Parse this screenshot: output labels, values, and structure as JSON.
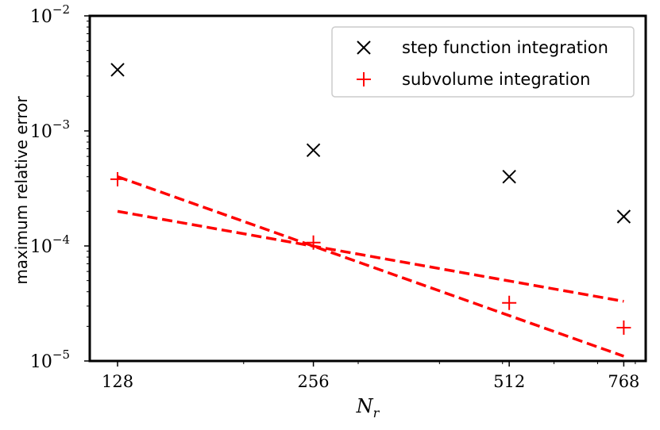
{
  "chart_data": {
    "type": "scatter",
    "xscale": "log",
    "yscale": "log",
    "x_ticks": [
      128,
      256,
      512,
      768
    ],
    "x_tick_labels": [
      "128",
      "256",
      "512",
      "768"
    ],
    "y_ticks": [
      1e-05,
      0.0001,
      0.001,
      0.01
    ],
    "y_tick_labels": [
      {
        "base": "10",
        "exp": "−5"
      },
      {
        "base": "10",
        "exp": "−4"
      },
      {
        "base": "10",
        "exp": "−3"
      },
      {
        "base": "10",
        "exp": "−2"
      }
    ],
    "xlim": [
      116,
      830
    ],
    "ylim": [
      1e-05,
      0.01
    ],
    "xlabel": {
      "base": "N",
      "sub": "r"
    },
    "ylabel": "maximum relative error",
    "legend_position": "top-right",
    "grid": false,
    "series": [
      {
        "name": "step function integration",
        "marker": "x",
        "color": "#000000",
        "x": [
          128,
          256,
          512,
          768
        ],
        "y": [
          0.0034,
          0.00068,
          0.0004,
          0.00018
        ]
      },
      {
        "name": "subvolume integration",
        "marker": "+",
        "color": "#ff0000",
        "x": [
          128,
          256,
          512,
          768
        ],
        "y": [
          0.00038,
          0.000107,
          3.2e-05,
          1.95e-05
        ]
      }
    ],
    "reference_lines": [
      {
        "style": "dashed",
        "color": "#ff0000",
        "x": [
          128,
          768
        ],
        "y": [
          0.0004,
          1.1e-05
        ]
      },
      {
        "style": "dashed",
        "color": "#ff0000",
        "x": [
          128,
          768
        ],
        "y": [
          0.0002,
          3.3e-05
        ]
      }
    ]
  }
}
